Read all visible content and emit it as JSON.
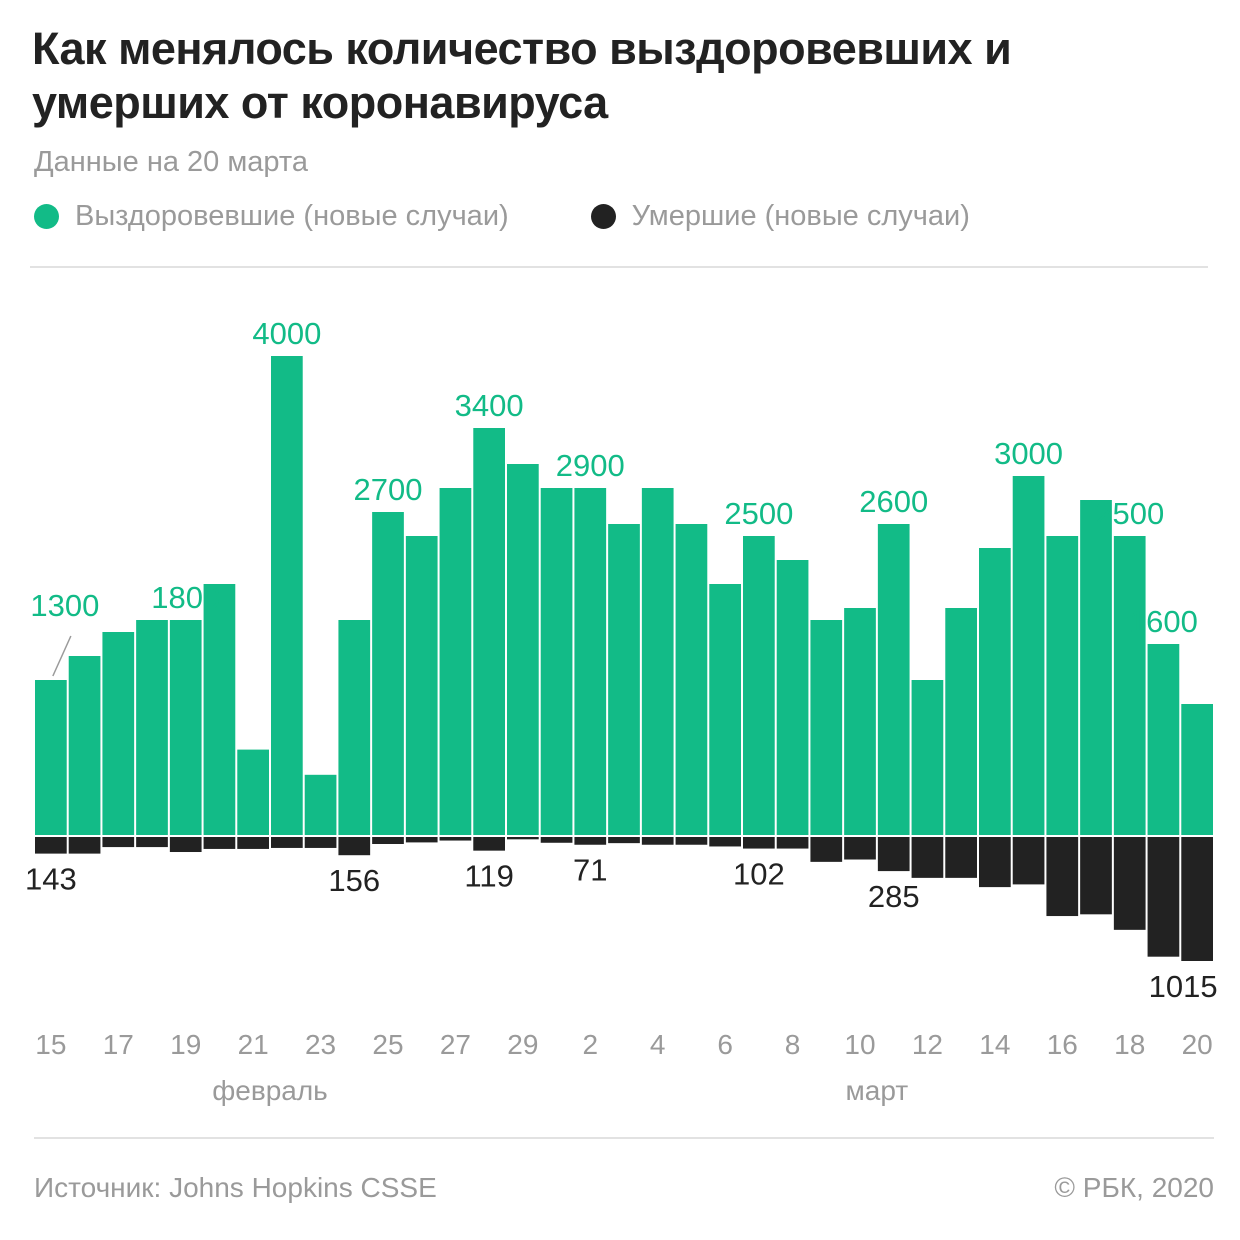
{
  "title": "Как менялось количество выздоровевших и умерших от коронавируса",
  "subtitle": "Данные на 20 марта",
  "footer": {
    "source": "Источник: Johns Hopkins CSSE",
    "credit": "© РБК, 2020"
  },
  "colors": {
    "recovered": "#12bb87",
    "deaths": "#222222",
    "axis_text": "#9a9a9a"
  },
  "chart_data": {
    "type": "bar",
    "legend_position": "top-left",
    "grid": false,
    "categories": [
      "15",
      "16",
      "17",
      "18",
      "19",
      "20",
      "21",
      "22",
      "23",
      "24",
      "25",
      "26",
      "27",
      "28",
      "29",
      "1",
      "2",
      "3",
      "4",
      "5",
      "6",
      "7",
      "8",
      "9",
      "10",
      "11",
      "12",
      "13",
      "14",
      "15",
      "16",
      "17",
      "18",
      "19",
      "20"
    ],
    "tick_labels": [
      "15",
      "",
      "17",
      "",
      "19",
      "",
      "21",
      "",
      "23",
      "",
      "25",
      "",
      "27",
      "",
      "29",
      "",
      "2",
      "",
      "4",
      "",
      "6",
      "",
      "8",
      "",
      "10",
      "",
      "12",
      "",
      "14",
      "",
      "16",
      "",
      "18",
      "",
      "20"
    ],
    "month_labels": [
      {
        "label": "февраль",
        "category_index": 6.5
      },
      {
        "label": "март",
        "category_index": 24.5
      }
    ],
    "series": [
      {
        "name": "Выздоровевшие (новые случаи)",
        "values": [
          1300,
          1500,
          1700,
          1800,
          1800,
          2100,
          720,
          4000,
          510,
          1800,
          2700,
          2500,
          2900,
          3400,
          3100,
          2900,
          2900,
          2600,
          2900,
          2600,
          2100,
          2500,
          2300,
          1800,
          1900,
          2600,
          1300,
          1900,
          2400,
          3000,
          2500,
          2800,
          2500,
          1600,
          1100
        ]
      },
      {
        "name": "Умершие (новые случаи)",
        "values": [
          143,
          143,
          90,
          90,
          130,
          105,
          105,
          97,
          97,
          156,
          65,
          52,
          37,
          119,
          27,
          55,
          71,
          58,
          71,
          71,
          85,
          102,
          102,
          210,
          191,
          285,
          340,
          340,
          415,
          393,
          650,
          636,
          762,
          980,
          1015
        ]
      }
    ],
    "recovered_labels": [
      {
        "index": 0,
        "text": "1300"
      },
      {
        "index": 4,
        "text": "1800"
      },
      {
        "index": 7,
        "text": "4000"
      },
      {
        "index": 10,
        "text": "2700"
      },
      {
        "index": 13,
        "text": "3400"
      },
      {
        "index": 16,
        "text": "2900"
      },
      {
        "index": 21,
        "text": "2500"
      },
      {
        "index": 25,
        "text": "2600"
      },
      {
        "index": 29,
        "text": "3000"
      },
      {
        "index": 32,
        "text": "2500"
      },
      {
        "index": 33,
        "text": "1600"
      }
    ],
    "deaths_labels": [
      {
        "index": 0,
        "text": "143"
      },
      {
        "index": 9,
        "text": "156"
      },
      {
        "index": 13,
        "text": "119"
      },
      {
        "index": 16,
        "text": "71"
      },
      {
        "index": 21,
        "text": "102"
      },
      {
        "index": 25,
        "text": "285"
      },
      {
        "index": 34,
        "text": "1015"
      }
    ]
  }
}
